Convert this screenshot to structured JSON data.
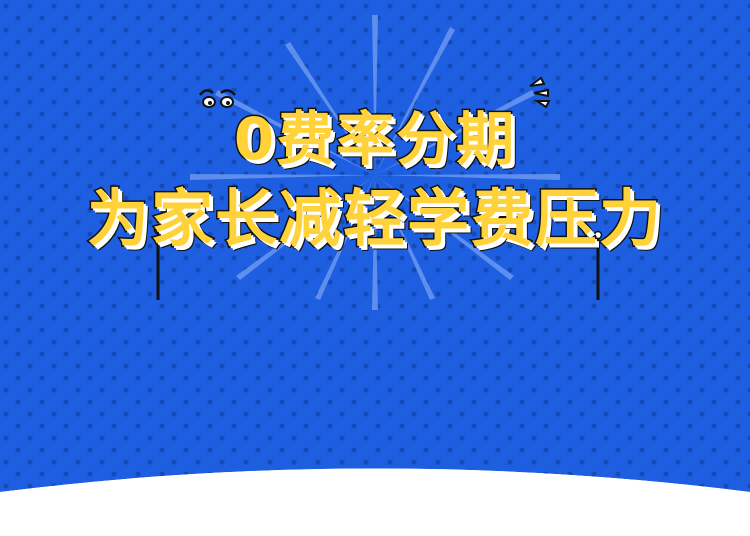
{
  "banner": {
    "line1": "0费率分期",
    "line2": "为家长减轻学费压力"
  },
  "colors": {
    "background": "#1d5fe0",
    "dots": "#154ab8",
    "burst": "#6f9cf2",
    "title_fill": "#ffd23a",
    "title_outline": "#111111",
    "title_shadow": "#ffffff"
  },
  "icons": [
    "burst-rays",
    "eyes-icon",
    "exclamation-marks-icon",
    "sparkle-stick-icon"
  ]
}
